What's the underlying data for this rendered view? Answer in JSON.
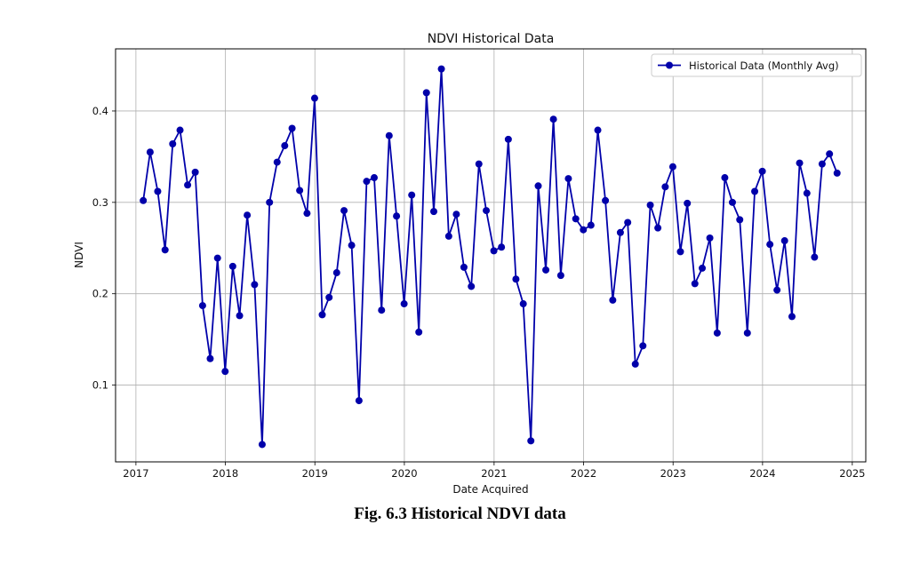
{
  "caption": "Fig. 6.3 Historical NDVI data",
  "chart_data": {
    "type": "line",
    "title": "NDVI Historical Data",
    "xlabel": "Date Acquired",
    "ylabel": "NDVI",
    "x_axis_kind": "date",
    "xlim": [
      "2016-10-10",
      "2025-02-25"
    ],
    "ylim": [
      0.016,
      0.468
    ],
    "xticks": [
      "2017",
      "2018",
      "2019",
      "2020",
      "2021",
      "2022",
      "2023",
      "2024",
      "2025"
    ],
    "xtick_dates": [
      "2017-01-01",
      "2018-01-01",
      "2019-01-01",
      "2020-01-01",
      "2021-01-01",
      "2022-01-01",
      "2023-01-01",
      "2024-01-01",
      "2025-01-01"
    ],
    "yticks": [
      0.1,
      0.2,
      0.3,
      0.4
    ],
    "ytick_labels": [
      "0.1",
      "0.2",
      "0.3",
      "0.4"
    ],
    "grid": true,
    "legend_position": "top-right",
    "line_color": "#0000aa",
    "series": [
      {
        "name": "Historical Data (Monthly Avg)",
        "x": [
          "2017-01-31",
          "2017-02-28",
          "2017-03-31",
          "2017-04-30",
          "2017-05-31",
          "2017-06-30",
          "2017-07-31",
          "2017-08-31",
          "2017-09-30",
          "2017-10-31",
          "2017-11-30",
          "2017-12-31",
          "2018-01-31",
          "2018-02-28",
          "2018-03-31",
          "2018-04-30",
          "2018-05-31",
          "2018-06-30",
          "2018-07-31",
          "2018-08-31",
          "2018-09-30",
          "2018-10-31",
          "2018-11-30",
          "2018-12-31",
          "2019-01-31",
          "2019-02-28",
          "2019-03-31",
          "2019-04-30",
          "2019-05-31",
          "2019-06-30",
          "2019-07-31",
          "2019-08-31",
          "2019-09-30",
          "2019-10-31",
          "2019-11-30",
          "2019-12-31",
          "2020-01-31",
          "2020-02-29",
          "2020-03-31",
          "2020-04-30",
          "2020-05-31",
          "2020-06-30",
          "2020-07-31",
          "2020-08-31",
          "2020-09-30",
          "2020-10-31",
          "2020-11-30",
          "2020-12-31",
          "2021-01-31",
          "2021-02-28",
          "2021-03-31",
          "2021-04-30",
          "2021-05-31",
          "2021-06-30",
          "2021-07-31",
          "2021-08-31",
          "2021-09-30",
          "2021-10-31",
          "2021-11-30",
          "2021-12-31",
          "2022-01-31",
          "2022-02-28",
          "2022-03-31",
          "2022-04-30",
          "2022-05-31",
          "2022-06-30",
          "2022-07-31",
          "2022-08-31",
          "2022-09-30",
          "2022-10-31",
          "2022-11-30",
          "2022-12-31",
          "2023-01-31",
          "2023-02-28",
          "2023-03-31",
          "2023-04-30",
          "2023-05-31",
          "2023-06-30",
          "2023-07-31",
          "2023-08-31",
          "2023-09-30",
          "2023-10-31",
          "2023-11-30",
          "2023-12-31",
          "2024-01-31",
          "2024-02-29",
          "2024-03-31",
          "2024-04-30",
          "2024-05-31",
          "2024-06-30",
          "2024-07-31",
          "2024-08-31",
          "2024-09-30",
          "2024-10-31"
        ],
        "y": [
          0.302,
          0.355,
          0.312,
          0.248,
          0.364,
          0.379,
          0.319,
          0.333,
          0.187,
          0.129,
          0.239,
          0.115,
          0.23,
          0.176,
          0.286,
          0.21,
          0.035,
          0.3,
          0.344,
          0.362,
          0.381,
          0.313,
          0.288,
          0.414,
          0.177,
          0.196,
          0.223,
          0.291,
          0.253,
          0.083,
          0.323,
          0.327,
          0.182,
          0.373,
          0.285,
          0.189,
          0.308,
          0.158,
          0.42,
          0.29,
          0.446,
          0.263,
          0.287,
          0.229,
          0.208,
          0.342,
          0.291,
          0.247,
          0.251,
          0.369,
          0.216,
          0.189,
          0.039,
          0.318,
          0.226,
          0.391,
          0.22,
          0.326,
          0.282,
          0.27,
          0.275,
          0.379,
          0.302,
          0.193,
          0.267,
          0.278,
          0.123,
          0.143,
          0.297,
          0.272,
          0.317,
          0.339,
          0.246,
          0.299,
          0.211,
          0.228,
          0.261,
          0.157,
          0.327,
          0.3,
          0.281,
          0.157,
          0.312,
          0.334,
          0.254,
          0.204,
          0.258,
          0.175,
          0.343,
          0.31,
          0.24,
          0.342,
          0.353,
          0.332
        ]
      }
    ]
  }
}
